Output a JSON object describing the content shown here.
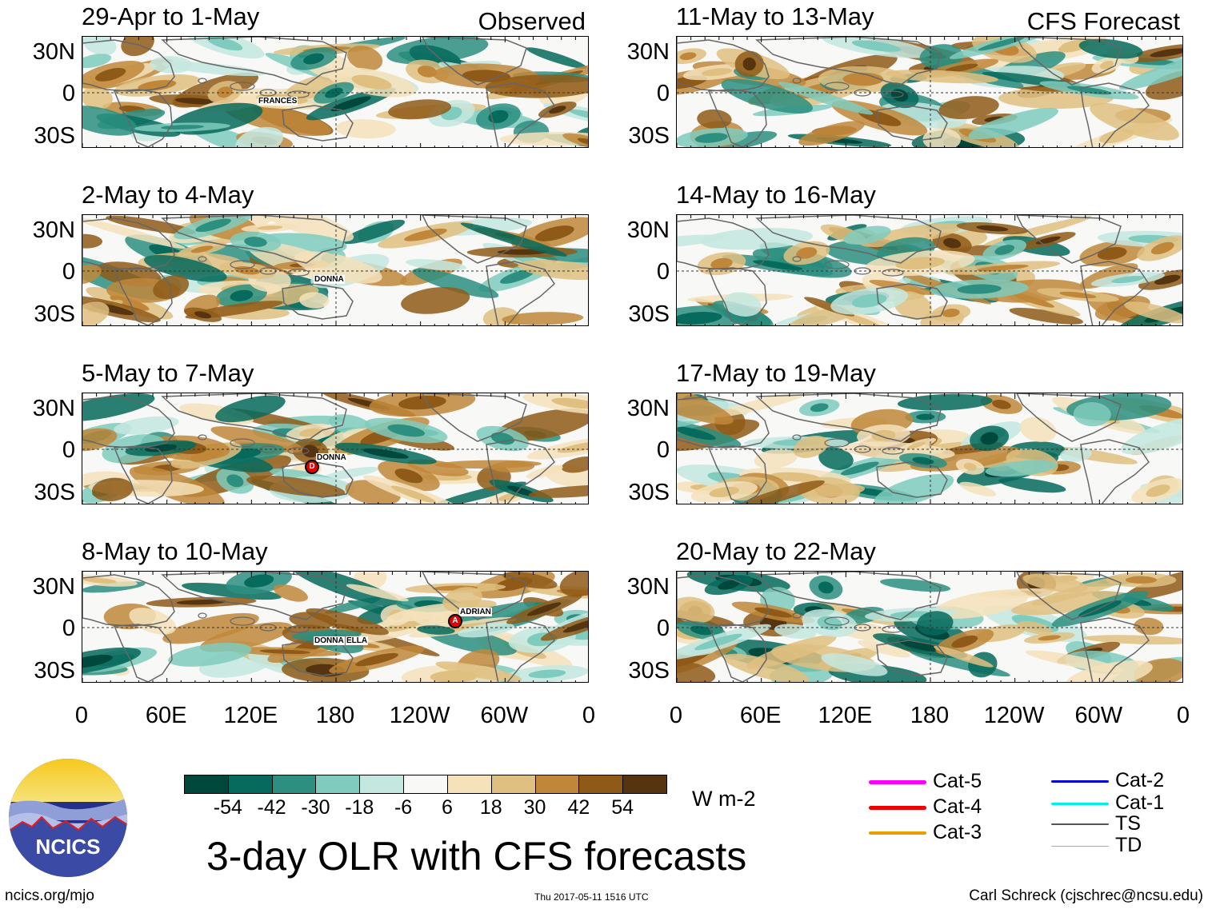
{
  "chart_data": {
    "type": "heatmap",
    "title": "3-day OLR with CFS forecasts",
    "units": "W m-2",
    "left_column_label": "Observed",
    "right_column_label": "CFS Forecast",
    "lat_labels": [
      "30N",
      "0",
      "30S"
    ],
    "lon_labels": [
      "0",
      "60E",
      "120E",
      "180",
      "120W",
      "60W",
      "0"
    ],
    "panels": [
      {
        "title": "29-Apr to 1-May",
        "column": "Observed",
        "storms": [
          {
            "name": "FRANCES",
            "symbol": ""
          }
        ]
      },
      {
        "title": "2-May to 4-May",
        "column": "Observed",
        "storms": [
          {
            "name": "DONNA",
            "symbol": ""
          }
        ]
      },
      {
        "title": "5-May to 7-May",
        "column": "Observed",
        "storms": [
          {
            "name": "DONNA",
            "symbol": "D"
          }
        ]
      },
      {
        "title": "8-May to 10-May",
        "column": "Observed",
        "storms": [
          {
            "name": "DONNA",
            "symbol": ""
          },
          {
            "name": "ELLA",
            "symbol": ""
          },
          {
            "name": "ADRIAN",
            "symbol": "A"
          }
        ]
      },
      {
        "title": "11-May to 13-May",
        "column": "CFS Forecast",
        "storms": []
      },
      {
        "title": "14-May to 16-May",
        "column": "CFS Forecast",
        "storms": []
      },
      {
        "title": "17-May to 19-May",
        "column": "CFS Forecast",
        "storms": []
      },
      {
        "title": "20-May to 22-May",
        "column": "CFS Forecast",
        "storms": []
      }
    ],
    "colorbar": {
      "ticks": [
        "-54",
        "-42",
        "-30",
        "-18",
        "-6",
        "6",
        "18",
        "30",
        "42",
        "54"
      ],
      "colors": [
        "#00483c",
        "#066a5c",
        "#2c8f80",
        "#7fcbbd",
        "#c4e8e0",
        "#f8f8f6",
        "#f5e2bb",
        "#dfc080",
        "#c0873a",
        "#8f5a17",
        "#563410"
      ]
    },
    "track_legend": [
      {
        "label": "Cat-5",
        "color": "#ff00ff"
      },
      {
        "label": "Cat-4",
        "color": "#ee0000"
      },
      {
        "label": "Cat-3",
        "color": "#e8a000"
      },
      {
        "label": "Cat-2",
        "color": "#0000dd"
      },
      {
        "label": "Cat-1",
        "color": "#00eeee"
      },
      {
        "label": "TS",
        "color": "#555555"
      },
      {
        "label": "TD",
        "color": "#aaaaaa"
      }
    ]
  },
  "footer": {
    "logo_text": "NCICS",
    "site": "ncics.org/mjo",
    "timestamp": "Thu 2017-05-11 1516 UTC",
    "credit": "Carl Schreck (cjschrec@ncsu.edu)"
  }
}
